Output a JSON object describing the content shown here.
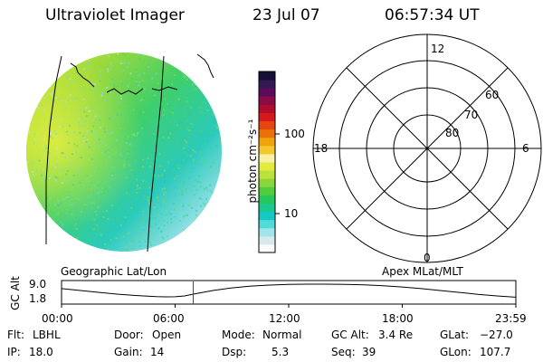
{
  "header": {
    "instrument": "Ultraviolet Imager",
    "date": "23 Jul 07",
    "time": "06:57:34 UT"
  },
  "colorbar": {
    "unit": "photon cm⁻²s⁻¹",
    "ticks": [
      "100",
      "10"
    ],
    "tick_values": [
      100,
      10
    ],
    "colors": [
      "#fbfbfb",
      "#d7e9ec",
      "#9fe6ea",
      "#4fdbd8",
      "#14c8c4",
      "#1bc98e",
      "#25c85e",
      "#4fcd3c",
      "#88d63a",
      "#bbe23a",
      "#e0eb3d",
      "#f7f0a4",
      "#f3c82d",
      "#f0a30c",
      "#ea7107",
      "#e5480f",
      "#d8191c",
      "#b00d2e",
      "#8a0b46",
      "#5e0a5a",
      "#331a55",
      "#171036"
    ]
  },
  "polar": {
    "mlt_labels": [
      "12",
      "18",
      "6",
      "0"
    ],
    "lat_labels": [
      "60",
      "70",
      "80"
    ]
  },
  "panel_labels": {
    "left": "Geographic Lat/Lon",
    "right": "Apex MLat/MLT"
  },
  "altitude_plot": {
    "ylabel": "GC Alt",
    "yticks": [
      "9.0",
      "1.8"
    ],
    "ytick_values": [
      9.0,
      1.8
    ],
    "xticks": [
      "00:00",
      "06:00",
      "12:00",
      "18:00",
      "23:59"
    ],
    "current_time_hours": 6.9586,
    "series": [
      [
        0,
        6.5
      ],
      [
        1,
        5.4
      ],
      [
        2,
        4.3
      ],
      [
        3,
        3.3
      ],
      [
        4,
        2.5
      ],
      [
        5,
        1.9
      ],
      [
        5.5,
        1.82
      ],
      [
        6,
        1.85
      ],
      [
        6.5,
        2.3
      ],
      [
        7,
        3.4
      ],
      [
        8,
        5.4
      ],
      [
        9,
        6.9
      ],
      [
        10,
        7.9
      ],
      [
        11,
        8.5
      ],
      [
        12,
        8.85
      ],
      [
        13,
        9.0
      ],
      [
        14,
        9.0
      ],
      [
        15,
        8.9
      ],
      [
        16,
        8.6
      ],
      [
        17,
        8.1
      ],
      [
        18,
        7.4
      ],
      [
        19,
        6.5
      ],
      [
        20,
        5.4
      ],
      [
        21,
        4.3
      ],
      [
        22,
        3.2
      ],
      [
        23,
        2.3
      ],
      [
        23.98,
        1.6
      ]
    ]
  },
  "info": {
    "filter_label": "Flt:",
    "filter_value": "LBHL",
    "ip_label": "IP:",
    "ip_value": "18.0",
    "door_label": "Door:",
    "door_value": "Open",
    "gain_label": "Gain:",
    "gain_value": "14",
    "mode_label": "Mode:",
    "mode_value": "Normal",
    "dsp_label": "Dsp:",
    "dsp_value": "5.3",
    "gcalt_label": "GC Alt:",
    "gcalt_value": "3.4 Re",
    "seq_label": "Seq:",
    "seq_value": "39",
    "glat_label": "GLat:",
    "glat_value": "−27.0",
    "glon_label": "GLon:",
    "glon_value": "107.7"
  }
}
